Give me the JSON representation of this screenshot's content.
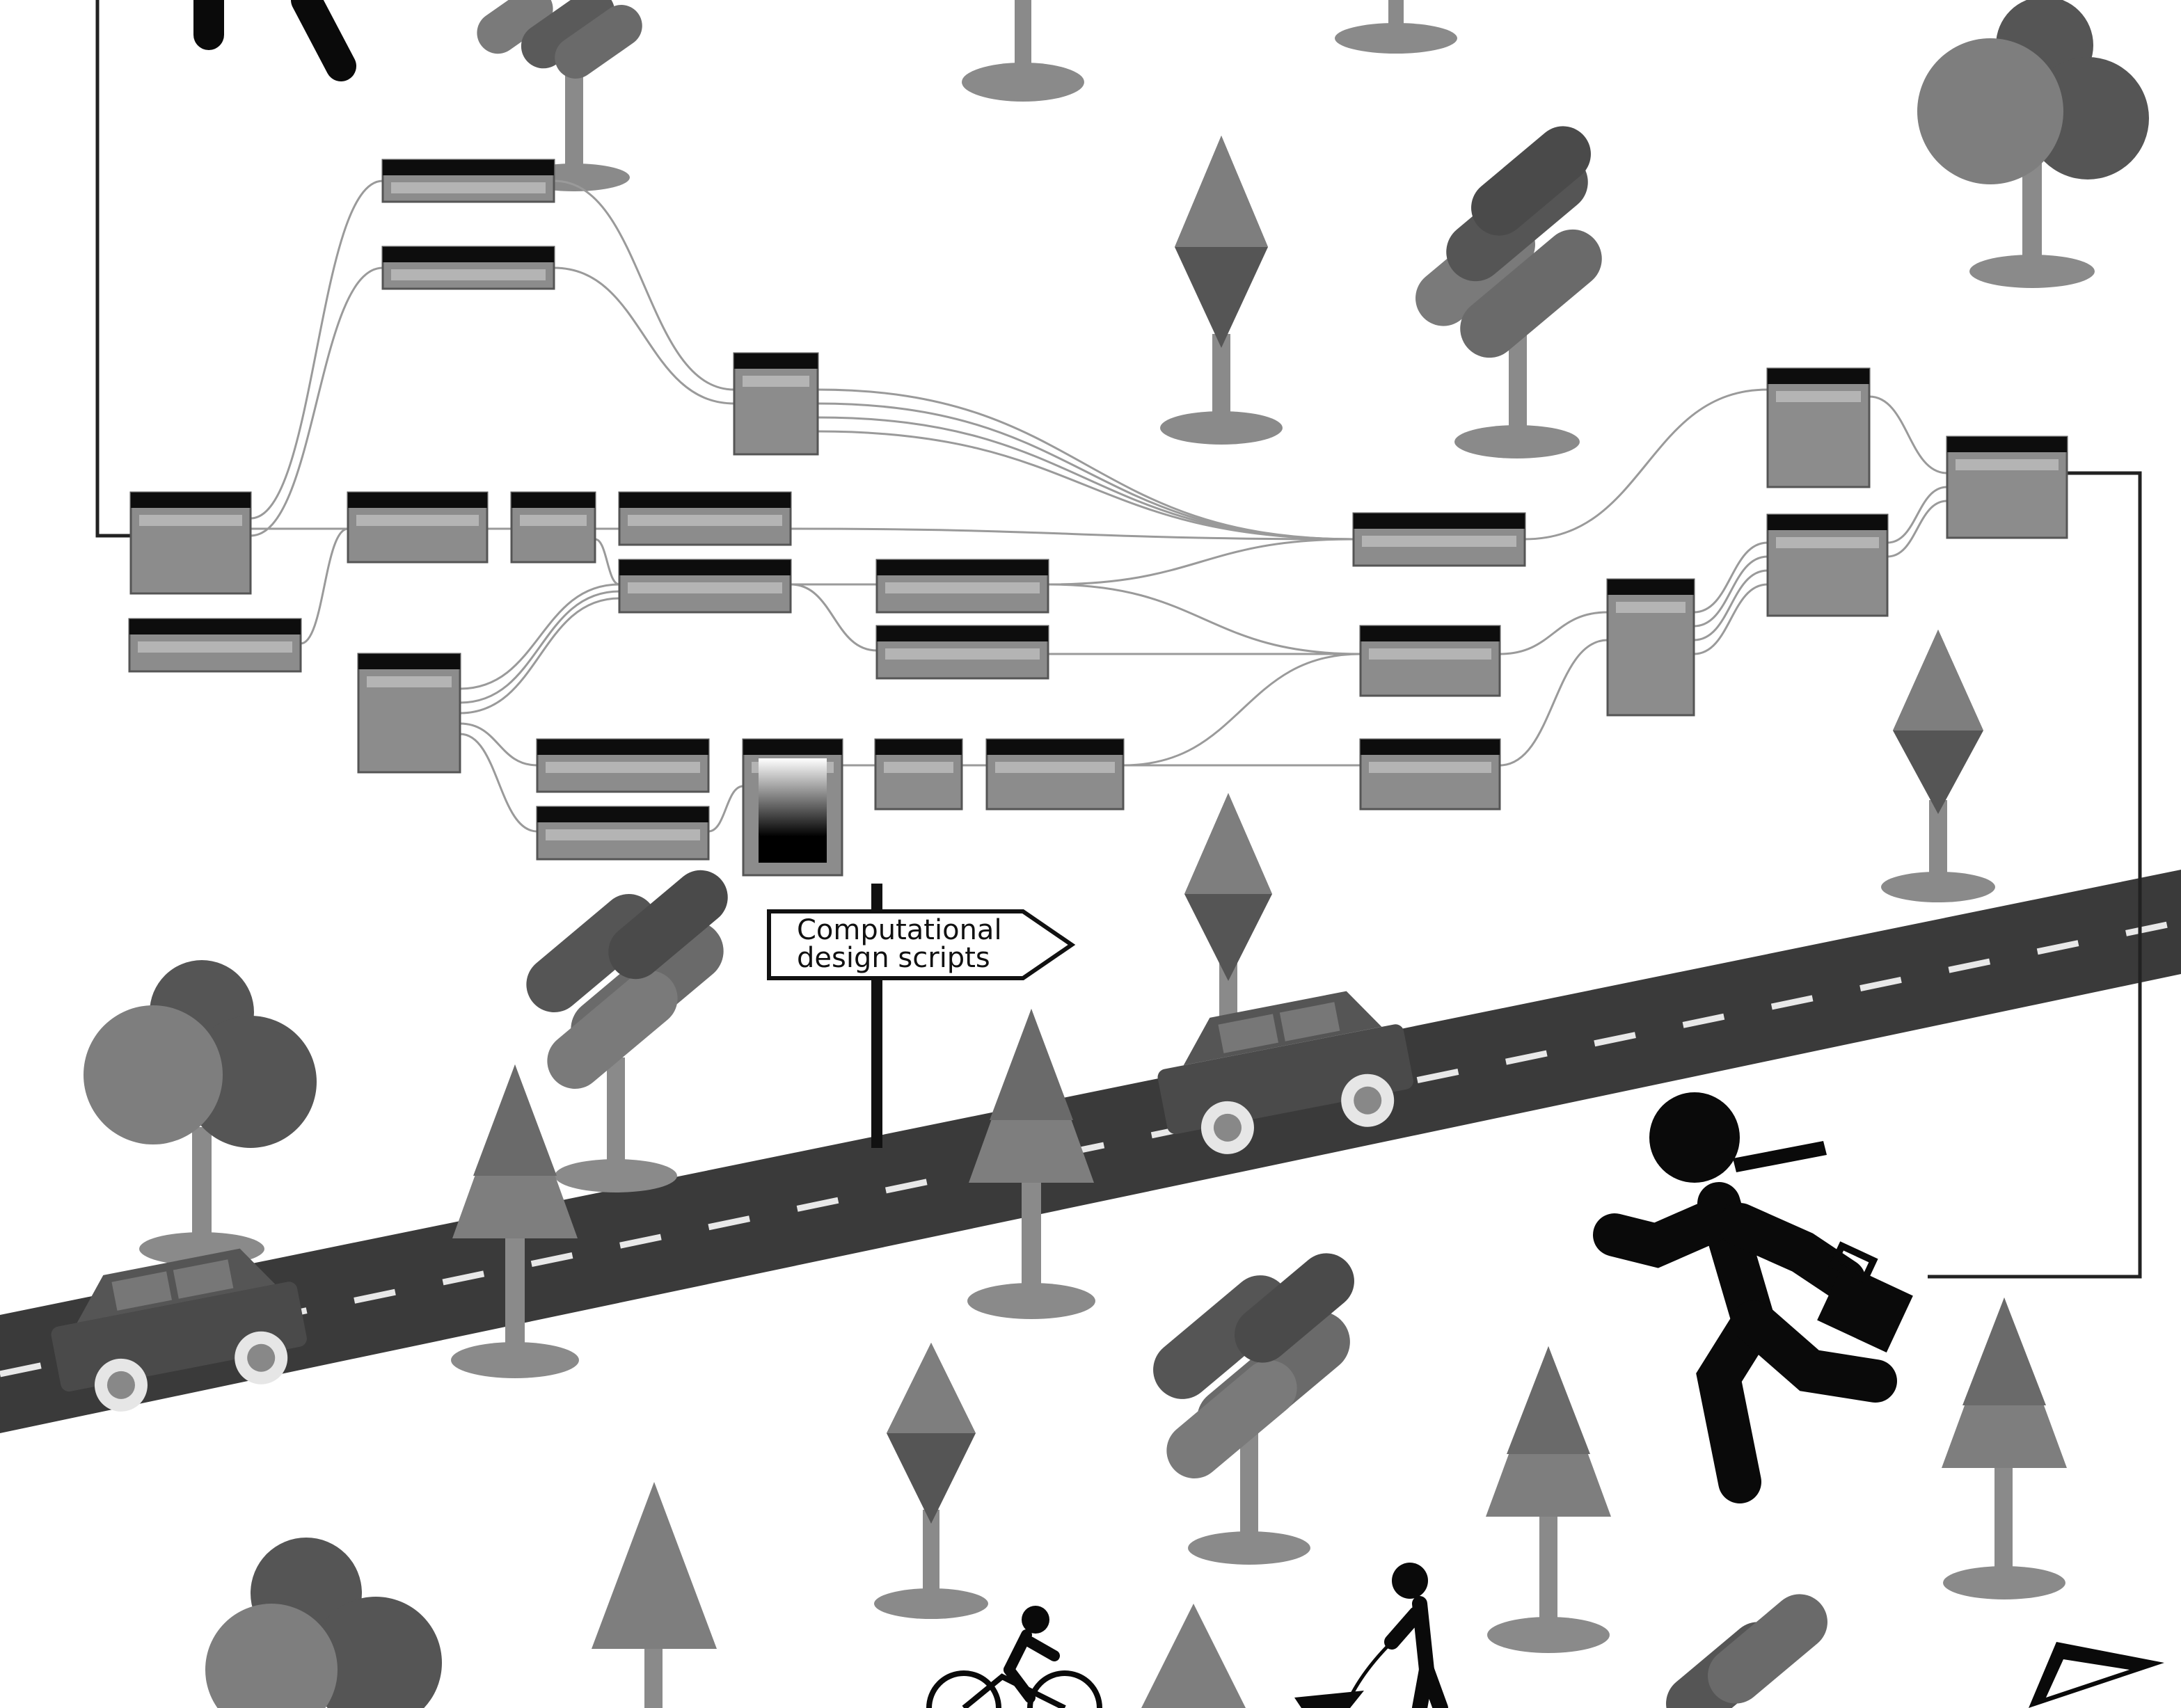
{
  "signpost": {
    "line1": "Computational",
    "line2": "design scripts"
  },
  "palette": {
    "node_body": "#8c8c8c",
    "node_header": "#0d0d0d",
    "wire": "#9a9a9a",
    "road": "#3a3a3a",
    "tree_light": "#7e7e7e",
    "tree_dark": "#555555",
    "trunk": "#8a8a8a",
    "figure": "#0a0a0a"
  },
  "icons": [
    "car-icon",
    "runner-with-briefcase-icon",
    "cyclist-icon",
    "dog-walker-icon",
    "kite-icon",
    "pine-tree-icon",
    "round-tree-icon",
    "diamond-tree-icon",
    "blob-tree-icon",
    "signpost-icon"
  ]
}
